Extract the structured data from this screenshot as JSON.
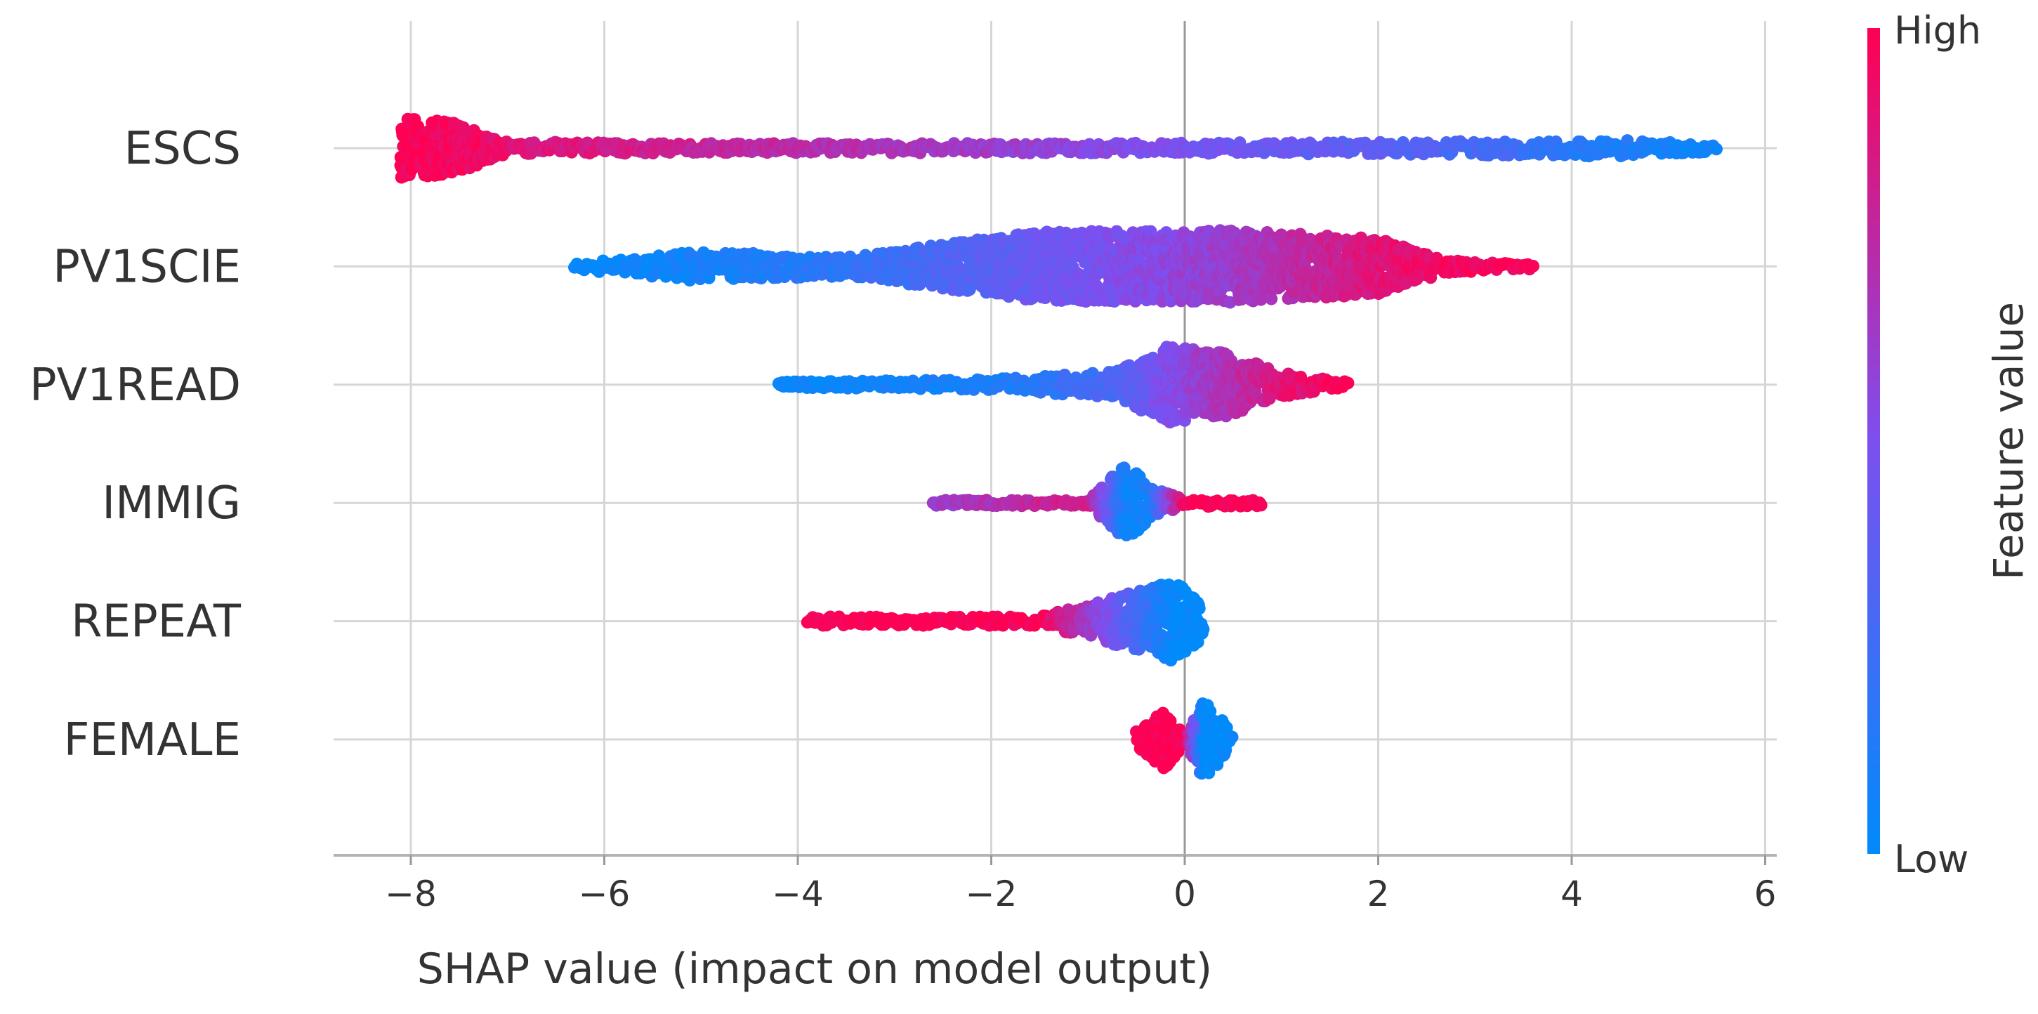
{
  "chart_data": {
    "type": "scatter",
    "subtype": "shap-beeswarm",
    "title": "",
    "xlabel": "SHAP value (impact on model output)",
    "ylabel": "",
    "xlim": [
      -8.8,
      6.2
    ],
    "xticks": [
      -8,
      -6,
      -4,
      -2,
      0,
      2,
      4,
      6
    ],
    "xtick_labels": [
      "−8",
      "−6",
      "−4",
      "−2",
      "0",
      "2",
      "4",
      "6"
    ],
    "grid": true,
    "colorbar": {
      "title": "Feature value",
      "high_label": "High",
      "low_label": "Low",
      "low_color": "#008bfb",
      "high_color": "#ff0052"
    },
    "features": [
      {
        "name": "ESCS",
        "range": [
          -8.1,
          5.5
        ],
        "profile": [
          {
            "x": -8.0,
            "spread": 0.55,
            "value": 0.98
          },
          {
            "x": -7.6,
            "spread": 0.5,
            "value": 0.96
          },
          {
            "x": -7.0,
            "spread": 0.12,
            "value": 0.9
          },
          {
            "x": -5.0,
            "spread": 0.09,
            "value": 0.78
          },
          {
            "x": -2.0,
            "spread": 0.09,
            "value": 0.62
          },
          {
            "x": 0.0,
            "spread": 0.1,
            "value": 0.48
          },
          {
            "x": 2.5,
            "spread": 0.12,
            "value": 0.33
          },
          {
            "x": 4.5,
            "spread": 0.16,
            "value": 0.12
          },
          {
            "x": 5.5,
            "spread": 0.06,
            "value": 0.05
          }
        ]
      },
      {
        "name": "PV1SCIE",
        "range": [
          -6.3,
          3.6
        ],
        "profile": [
          {
            "x": -6.3,
            "spread": 0.06,
            "value": 0.02
          },
          {
            "x": -5.0,
            "spread": 0.28,
            "value": 0.08
          },
          {
            "x": -3.5,
            "spread": 0.18,
            "value": 0.18
          },
          {
            "x": -1.5,
            "spread": 0.65,
            "value": 0.42
          },
          {
            "x": 0.5,
            "spread": 0.68,
            "value": 0.62
          },
          {
            "x": 2.0,
            "spread": 0.52,
            "value": 0.88
          },
          {
            "x": 2.7,
            "spread": 0.12,
            "value": 0.95
          },
          {
            "x": 3.6,
            "spread": 0.05,
            "value": 0.98
          }
        ]
      },
      {
        "name": "PV1READ",
        "range": [
          -4.2,
          1.7
        ],
        "profile": [
          {
            "x": -4.2,
            "spread": 0.05,
            "value": 0.02
          },
          {
            "x": -2.0,
            "spread": 0.1,
            "value": 0.1
          },
          {
            "x": -0.7,
            "spread": 0.25,
            "value": 0.3
          },
          {
            "x": -0.2,
            "spread": 0.72,
            "value": 0.5
          },
          {
            "x": 0.5,
            "spread": 0.58,
            "value": 0.7
          },
          {
            "x": 1.0,
            "spread": 0.22,
            "value": 0.88
          },
          {
            "x": 1.7,
            "spread": 0.05,
            "value": 0.98
          }
        ]
      },
      {
        "name": "IMMIG",
        "range": [
          -2.6,
          0.8
        ],
        "profile": [
          {
            "x": -2.6,
            "spread": 0.05,
            "value": 0.6
          },
          {
            "x": -1.0,
            "spread": 0.06,
            "value": 0.85
          },
          {
            "x": -0.6,
            "spread": 0.75,
            "value": 0.05
          },
          {
            "x": -0.35,
            "spread": 0.3,
            "value": 0.1
          },
          {
            "x": 0.0,
            "spread": 0.07,
            "value": 0.98
          },
          {
            "x": 0.8,
            "spread": 0.06,
            "value": 1.0
          }
        ]
      },
      {
        "name": "REPEAT",
        "range": [
          -3.9,
          0.2
        ],
        "profile": [
          {
            "x": -3.9,
            "spread": 0.08,
            "value": 1.0
          },
          {
            "x": -1.5,
            "spread": 0.08,
            "value": 1.0
          },
          {
            "x": -0.1,
            "spread": 0.75,
            "value": 0.0
          },
          {
            "x": 0.2,
            "spread": 0.3,
            "value": 0.0
          }
        ]
      },
      {
        "name": "FEMALE",
        "range": [
          -0.5,
          0.5
        ],
        "profile": [
          {
            "x": -0.5,
            "spread": 0.15,
            "value": 1.0
          },
          {
            "x": -0.2,
            "spread": 0.55,
            "value": 1.0
          },
          {
            "x": 0.0,
            "spread": 0.1,
            "value": 1.0
          },
          {
            "x": 0.2,
            "spread": 0.75,
            "value": 0.0
          },
          {
            "x": 0.5,
            "spread": 0.1,
            "value": 0.0
          }
        ]
      }
    ]
  }
}
